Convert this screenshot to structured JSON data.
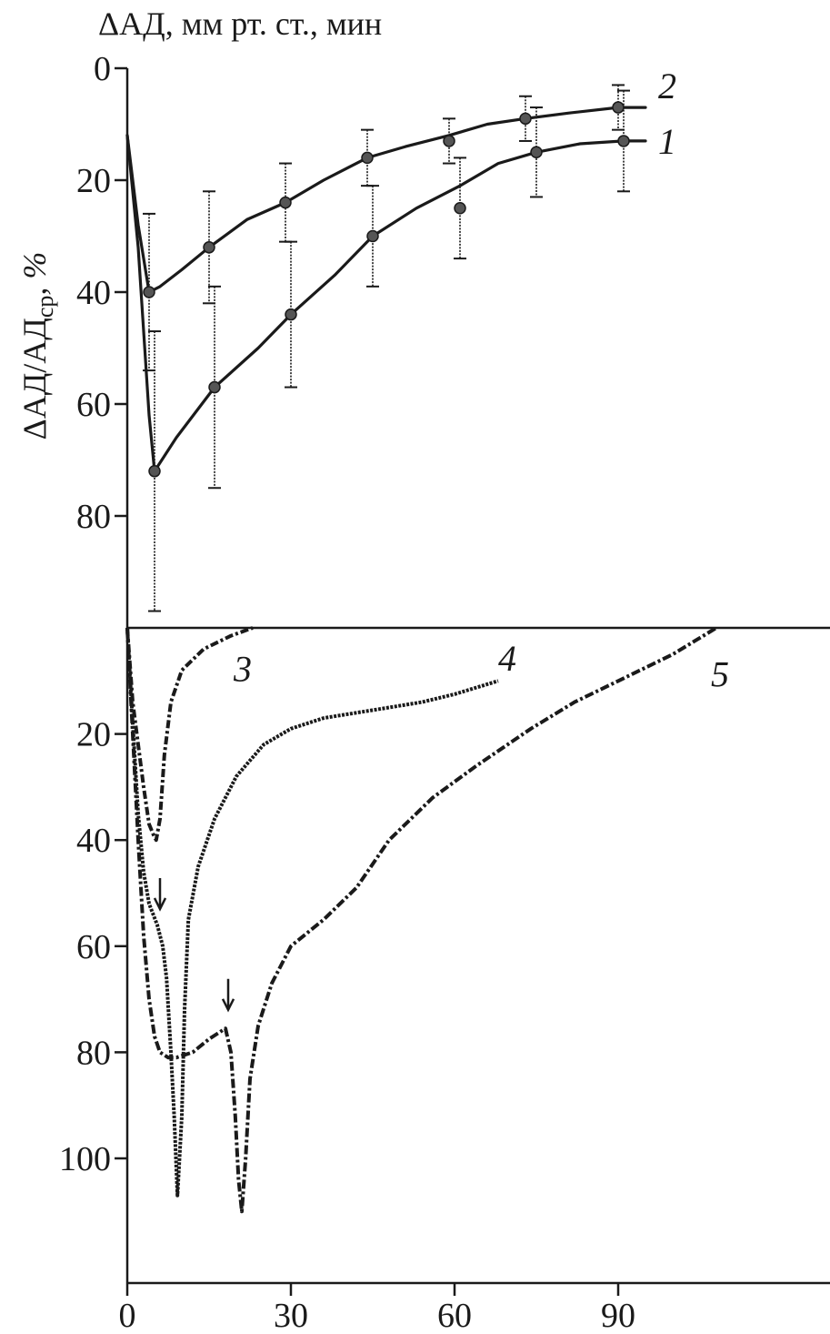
{
  "chart_data": {
    "type": "line",
    "title": "ΔАД, мм рт. ст., мин",
    "ylabel": {
      "main": "ΔАД/АД",
      "sub": "ср",
      "suffix": ", %"
    },
    "x_ticks": [
      "0",
      "30",
      "60",
      "90"
    ],
    "top_panel": {
      "y_ticks": [
        "0",
        "20",
        "40",
        "60",
        "80"
      ],
      "ylim": [
        0,
        100
      ],
      "series": [
        {
          "name": "1",
          "x": [
            5,
            16,
            30,
            45,
            61,
            75,
            91
          ],
          "y": [
            72,
            57,
            44,
            30,
            25,
            15,
            13
          ],
          "err": [
            25,
            18,
            13,
            9,
            9,
            8,
            9
          ],
          "curve": [
            [
              0,
              12
            ],
            [
              2,
              32
            ],
            [
              4,
              62
            ],
            [
              5,
              72
            ],
            [
              9,
              66
            ],
            [
              16,
              57
            ],
            [
              24,
              50
            ],
            [
              30,
              44
            ],
            [
              38,
              37
            ],
            [
              45,
              30
            ],
            [
              53,
              25
            ],
            [
              61,
              21
            ],
            [
              68,
              17
            ],
            [
              75,
              15
            ],
            [
              83,
              13.5
            ],
            [
              91,
              13
            ],
            [
              95,
              13
            ]
          ]
        },
        {
          "name": "2",
          "x": [
            4,
            15,
            29,
            44,
            59,
            73,
            90
          ],
          "y": [
            40,
            32,
            24,
            16,
            13,
            9,
            7
          ],
          "err": [
            14,
            10,
            7,
            5,
            4,
            4,
            4
          ],
          "curve": [
            [
              0,
              12
            ],
            [
              2,
              28
            ],
            [
              4,
              40
            ],
            [
              6,
              39
            ],
            [
              10,
              36
            ],
            [
              15,
              32
            ],
            [
              22,
              27
            ],
            [
              29,
              24
            ],
            [
              36,
              20
            ],
            [
              44,
              16
            ],
            [
              51,
              14
            ],
            [
              59,
              12
            ],
            [
              66,
              10
            ],
            [
              73,
              9
            ],
            [
              81,
              8
            ],
            [
              90,
              7
            ],
            [
              95,
              7
            ]
          ]
        }
      ]
    },
    "bottom_panel": {
      "y_ticks": [
        "20",
        "40",
        "60",
        "80",
        "100"
      ],
      "ylim": [
        0,
        118
      ],
      "series": [
        {
          "name": "3",
          "curve": [
            [
              0,
              0
            ],
            [
              1,
              14
            ],
            [
              2,
              22
            ],
            [
              3,
              30
            ],
            [
              4,
              37
            ],
            [
              4.8,
              39
            ],
            [
              5.3,
              40
            ],
            [
              6,
              36
            ],
            [
              6.8,
              24
            ],
            [
              8,
              14
            ],
            [
              10,
              8
            ],
            [
              14,
              4
            ],
            [
              19,
              1.5
            ],
            [
              23,
              0
            ]
          ]
        },
        {
          "name": "4",
          "curve": [
            [
              0,
              0
            ],
            [
              1,
              18
            ],
            [
              2,
              35
            ],
            [
              3,
              46
            ],
            [
              4,
              52
            ],
            [
              5.5,
              56
            ],
            [
              6.5,
              60
            ],
            [
              7.2,
              66
            ],
            [
              8,
              80
            ],
            [
              8.6,
              92
            ],
            [
              9.2,
              107
            ],
            [
              10,
              92
            ],
            [
              10.5,
              72
            ],
            [
              11.2,
              55
            ],
            [
              13,
              45
            ],
            [
              16,
              36
            ],
            [
              20,
              28
            ],
            [
              25,
              22
            ],
            [
              30,
              19
            ],
            [
              36,
              17
            ],
            [
              42,
              16
            ],
            [
              48,
              15
            ],
            [
              54,
              14
            ],
            [
              60,
              12.5
            ],
            [
              68,
              10
            ]
          ]
        },
        {
          "name": "5",
          "curve": [
            [
              0,
              0
            ],
            [
              1,
              20
            ],
            [
              2,
              40
            ],
            [
              3,
              58
            ],
            [
              4,
              70
            ],
            [
              5,
              77
            ],
            [
              6,
              80
            ],
            [
              7.5,
              81
            ],
            [
              9,
              81
            ],
            [
              12,
              80
            ],
            [
              15,
              77.5
            ],
            [
              18,
              75.5
            ],
            [
              19,
              80
            ],
            [
              19.8,
              92
            ],
            [
              20.4,
              104
            ],
            [
              21,
              110
            ],
            [
              21.7,
              100
            ],
            [
              22.5,
              85
            ],
            [
              24,
              75
            ],
            [
              26.5,
              67
            ],
            [
              30,
              60
            ],
            [
              36,
              55
            ],
            [
              42,
              49
            ],
            [
              48,
              40
            ],
            [
              56,
              32
            ],
            [
              64,
              26
            ],
            [
              74,
              19
            ],
            [
              82,
              14
            ],
            [
              92,
              9
            ],
            [
              100,
              5
            ],
            [
              108,
              0
            ]
          ]
        }
      ],
      "arrows": [
        {
          "x": 6,
          "y": 53
        },
        {
          "x": 18.5,
          "y": 72
        }
      ]
    }
  }
}
